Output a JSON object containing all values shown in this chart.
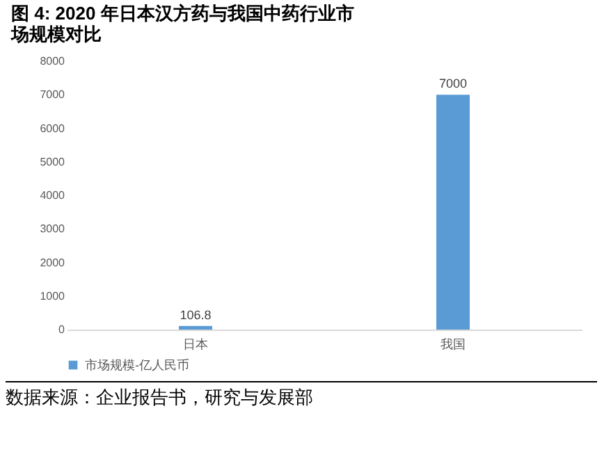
{
  "chart_data": {
    "type": "bar",
    "title": "图 4: 2020 年日本汉方药与我国中药行业市场规模对比",
    "categories": [
      "日本",
      "我国"
    ],
    "series": [
      {
        "name": "市场规模-亿人民币",
        "color": "#5b9bd5",
        "values": [
          106.8,
          7000
        ]
      }
    ],
    "ylim": [
      0,
      8000
    ],
    "yticks": [
      0,
      1000,
      2000,
      3000,
      4000,
      5000,
      6000,
      7000,
      8000
    ],
    "grid": false,
    "legend": "bottom",
    "data_labels": true,
    "annotations": [
      "数据来源：企业报告书，研究与发展部"
    ]
  }
}
